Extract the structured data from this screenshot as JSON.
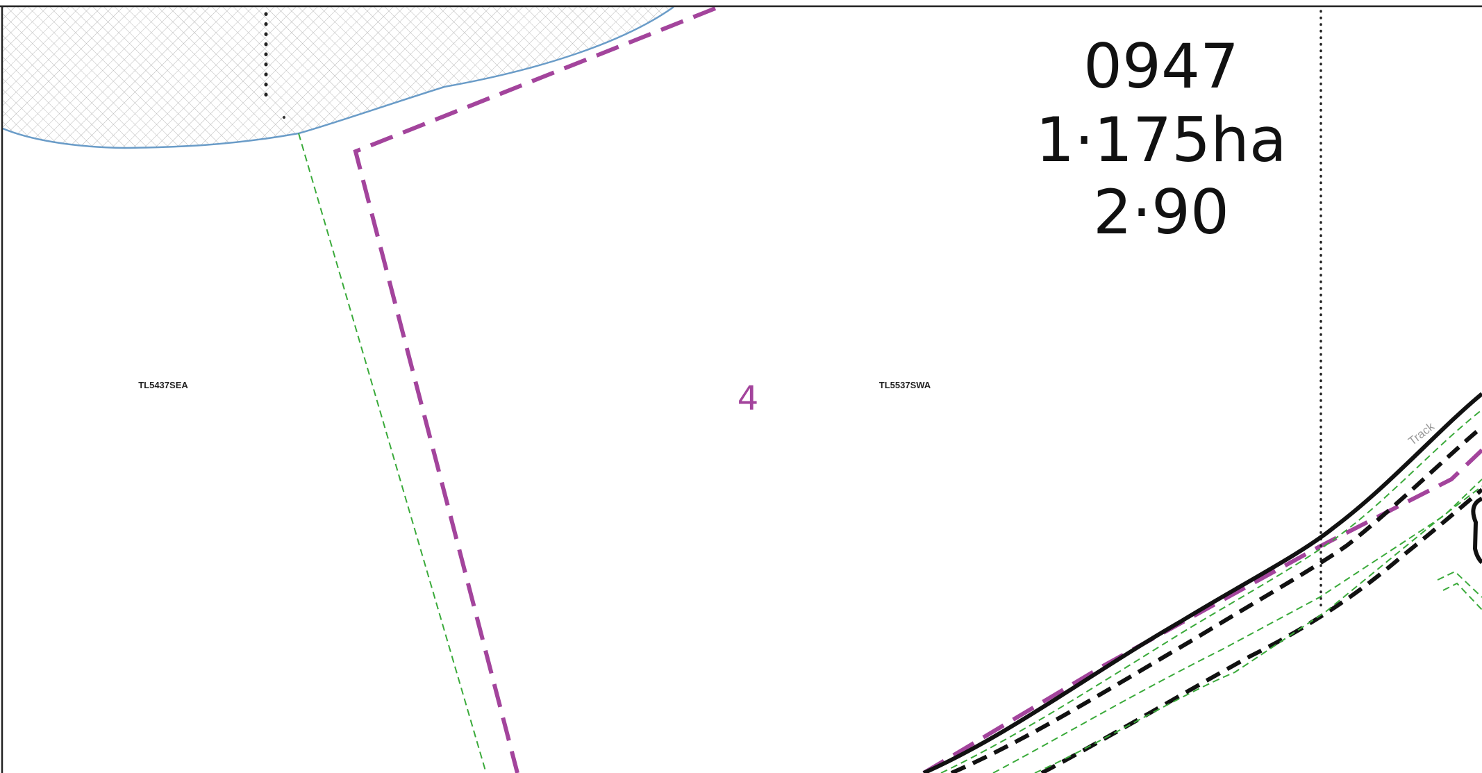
{
  "parcel": {
    "id": "0947",
    "area": "1·175ha",
    "value": "2·90"
  },
  "field_number": "4",
  "sheet_labels": {
    "left": "TL5437SEA",
    "right": "TL5537SWA"
  },
  "track_label": "Track",
  "colors": {
    "boundary_purple": "#a3449c",
    "green_dashed": "#3aaa3a",
    "water_edge": "#6a9cc8",
    "hatch_gray": "#b8b8b8",
    "ink": "#111111",
    "frame": "#222222"
  }
}
